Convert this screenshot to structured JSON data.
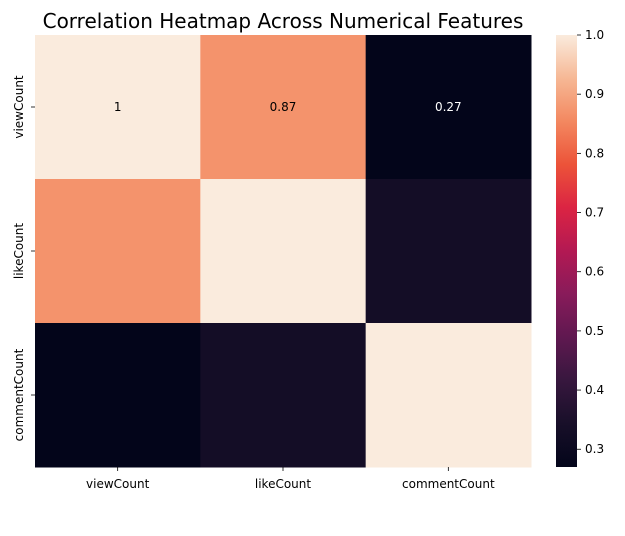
{
  "chart_data": {
    "type": "heatmap",
    "title": "Correlation Heatmap Across Numerical Features",
    "x_categories": [
      "viewCount",
      "likeCount",
      "commentCount"
    ],
    "y_categories": [
      "viewCount",
      "likeCount",
      "commentCount"
    ],
    "values": [
      [
        1.0,
        0.87,
        0.27
      ],
      [
        0.87,
        1.0,
        0.33
      ],
      [
        0.27,
        0.33,
        1.0
      ]
    ],
    "annotations": [
      [
        "1",
        "0.87",
        "0.27"
      ],
      [
        "",
        "",
        ""
      ],
      [
        "",
        "",
        ""
      ]
    ],
    "colorbar": {
      "ticks": [
        0.3,
        0.4,
        0.5,
        0.6,
        0.7,
        0.8,
        0.9,
        1.0
      ],
      "tick_labels": [
        "0.3",
        "0.4",
        "0.5",
        "0.6",
        "0.7",
        "0.8",
        "0.9",
        "1.0"
      ],
      "range": [
        0.27,
        1.0
      ]
    },
    "xlabel": "",
    "ylabel": "",
    "colors": {
      "colormap": "rocket",
      "low": "#03051A",
      "high": "#FAEBDD",
      "annotation_light_bg": "#000000",
      "annotation_dark_bg": "#ffffff"
    }
  }
}
